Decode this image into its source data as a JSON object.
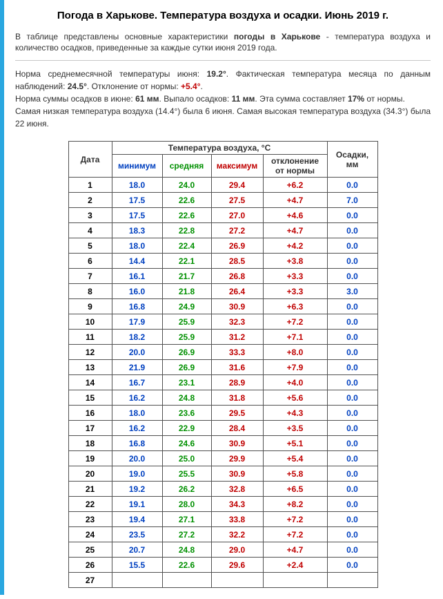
{
  "title": "Погода в Харькове. Температура воздуха и осадки. Июнь 2019 г.",
  "intro": {
    "pre": "В таблице представлены основные характеристики ",
    "bold": "погоды в Харькове",
    "post": " - температура воздуха и количество осадков, приведенные за каждые сутки июня 2019 года."
  },
  "stats": {
    "line1_a": "Норма среднемесячной температуры июня: ",
    "norm_temp": "19.2°",
    "line1_b": ". Фактическая температура месяца по данным наблюдений: ",
    "fact_temp": "24.5°",
    "line1_c": ". Отклонение от нормы: ",
    "deviation": "+5.4°",
    "line1_d": ".",
    "line2_a": "Норма суммы осадков в июне: ",
    "norm_precip": "61 мм",
    "line2_b": ". Выпало осадков: ",
    "fact_precip": "11 мм",
    "line2_c": ". Эта сумма составляет ",
    "precip_pct": "17%",
    "line2_d": " от нормы.",
    "line3": "Самая низкая температура воздуха (14.4°) была 6 июня. Самая высокая температура воздуха (34.3°) была 22 июня."
  },
  "headers": {
    "date": "Дата",
    "temp_group": "Температура воздуха, °C",
    "precip": "Осадки, мм",
    "min": "минимум",
    "avg": "средняя",
    "max": "максимум",
    "dev": "отклонение от нормы"
  },
  "rows": [
    {
      "d": "1",
      "min": "18.0",
      "avg": "24.0",
      "max": "29.4",
      "dev": "+6.2",
      "p": "0.0"
    },
    {
      "d": "2",
      "min": "17.5",
      "avg": "22.6",
      "max": "27.5",
      "dev": "+4.7",
      "p": "7.0"
    },
    {
      "d": "3",
      "min": "17.5",
      "avg": "22.6",
      "max": "27.0",
      "dev": "+4.6",
      "p": "0.0"
    },
    {
      "d": "4",
      "min": "18.3",
      "avg": "22.8",
      "max": "27.2",
      "dev": "+4.7",
      "p": "0.0"
    },
    {
      "d": "5",
      "min": "18.0",
      "avg": "22.4",
      "max": "26.9",
      "dev": "+4.2",
      "p": "0.0"
    },
    {
      "d": "6",
      "min": "14.4",
      "avg": "22.1",
      "max": "28.5",
      "dev": "+3.8",
      "p": "0.0"
    },
    {
      "d": "7",
      "min": "16.1",
      "avg": "21.7",
      "max": "26.8",
      "dev": "+3.3",
      "p": "0.0"
    },
    {
      "d": "8",
      "min": "16.0",
      "avg": "21.8",
      "max": "26.4",
      "dev": "+3.3",
      "p": "3.0"
    },
    {
      "d": "9",
      "min": "16.8",
      "avg": "24.9",
      "max": "30.9",
      "dev": "+6.3",
      "p": "0.0"
    },
    {
      "d": "10",
      "min": "17.9",
      "avg": "25.9",
      "max": "32.3",
      "dev": "+7.2",
      "p": "0.0"
    },
    {
      "d": "11",
      "min": "18.2",
      "avg": "25.9",
      "max": "31.2",
      "dev": "+7.1",
      "p": "0.0"
    },
    {
      "d": "12",
      "min": "20.0",
      "avg": "26.9",
      "max": "33.3",
      "dev": "+8.0",
      "p": "0.0"
    },
    {
      "d": "13",
      "min": "21.9",
      "avg": "26.9",
      "max": "31.6",
      "dev": "+7.9",
      "p": "0.0"
    },
    {
      "d": "14",
      "min": "16.7",
      "avg": "23.1",
      "max": "28.9",
      "dev": "+4.0",
      "p": "0.0"
    },
    {
      "d": "15",
      "min": "16.2",
      "avg": "24.8",
      "max": "31.8",
      "dev": "+5.6",
      "p": "0.0"
    },
    {
      "d": "16",
      "min": "18.0",
      "avg": "23.6",
      "max": "29.5",
      "dev": "+4.3",
      "p": "0.0"
    },
    {
      "d": "17",
      "min": "16.2",
      "avg": "22.9",
      "max": "28.4",
      "dev": "+3.5",
      "p": "0.0"
    },
    {
      "d": "18",
      "min": "16.8",
      "avg": "24.6",
      "max": "30.9",
      "dev": "+5.1",
      "p": "0.0"
    },
    {
      "d": "19",
      "min": "20.0",
      "avg": "25.0",
      "max": "29.9",
      "dev": "+5.4",
      "p": "0.0"
    },
    {
      "d": "20",
      "min": "19.0",
      "avg": "25.5",
      "max": "30.9",
      "dev": "+5.8",
      "p": "0.0"
    },
    {
      "d": "21",
      "min": "19.2",
      "avg": "26.2",
      "max": "32.8",
      "dev": "+6.5",
      "p": "0.0"
    },
    {
      "d": "22",
      "min": "19.1",
      "avg": "28.0",
      "max": "34.3",
      "dev": "+8.2",
      "p": "0.0"
    },
    {
      "d": "23",
      "min": "19.4",
      "avg": "27.1",
      "max": "33.8",
      "dev": "+7.2",
      "p": "0.0"
    },
    {
      "d": "24",
      "min": "23.5",
      "avg": "27.2",
      "max": "32.2",
      "dev": "+7.2",
      "p": "0.0"
    },
    {
      "d": "25",
      "min": "20.7",
      "avg": "24.8",
      "max": "29.0",
      "dev": "+4.7",
      "p": "0.0"
    },
    {
      "d": "26",
      "min": "15.5",
      "avg": "22.6",
      "max": "29.6",
      "dev": "+2.4",
      "p": "0.0"
    },
    {
      "d": "27",
      "min": "",
      "avg": "",
      "max": "",
      "dev": "",
      "p": ""
    }
  ],
  "colors": {
    "min": "#0040c0",
    "avg": "#009000",
    "max": "#c00000",
    "dev": "#c00000",
    "precip": "#0040c0",
    "stripe": "#2aa7e0",
    "border": "#505050"
  }
}
